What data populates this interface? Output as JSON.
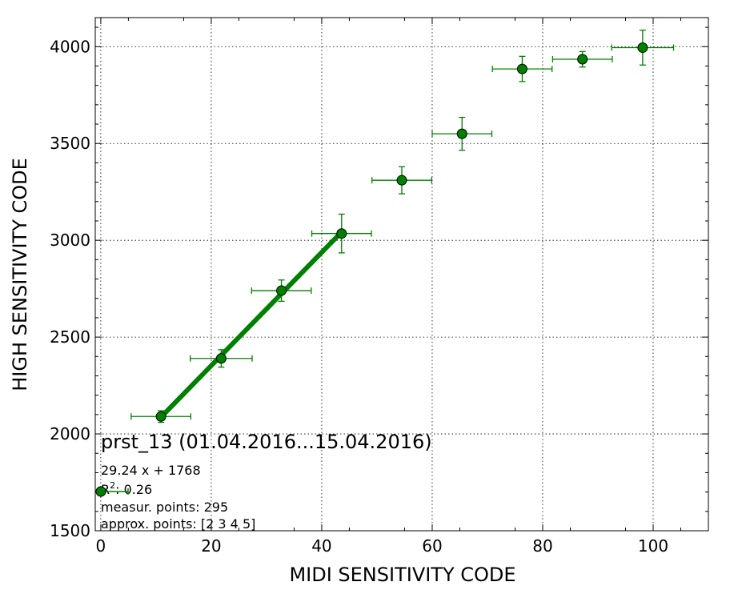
{
  "chart_data": {
    "type": "scatter",
    "title": "prst_13 (01.04.2016...15.04.2016)",
    "xlabel": "MIDI SENSITIVITY CODE",
    "ylabel": "HIGH SENSITIVITY CODE",
    "xlim": [
      -1,
      110
    ],
    "ylim": [
      1500,
      4150
    ],
    "xticks": [
      0,
      20,
      40,
      60,
      80,
      100
    ],
    "yticks": [
      1500,
      2000,
      2500,
      3000,
      3500,
      4000
    ],
    "xtick_labels": [
      "0",
      "20",
      "40",
      "60",
      "80",
      "100"
    ],
    "ytick_labels": [
      "1500",
      "2000",
      "2500",
      "3000",
      "3500",
      "4000"
    ],
    "grid": true,
    "colors": {
      "series": "#008000",
      "marker_edge": "#000000"
    },
    "series": [
      {
        "x": [
          10.9,
          21.8,
          32.7,
          43.6,
          54.5,
          65.4,
          76.3,
          87.2,
          98.1
        ],
        "y": [
          2090,
          2390,
          2740,
          3035,
          3310,
          3550,
          3885,
          3935,
          3995
        ],
        "xerr": [
          5.4,
          5.6,
          5.4,
          5.4,
          5.4,
          5.4,
          5.4,
          5.4,
          5.6
        ],
        "yerr": [
          30,
          45,
          55,
          100,
          70,
          85,
          65,
          40,
          90
        ]
      }
    ],
    "fit_line": {
      "x": [
        10.9,
        43.6
      ],
      "slope": 29.24,
      "intercept": 1768
    },
    "legend": {
      "placement": "bottom-left"
    },
    "annotations": {
      "equation": "29.24 x + 1768",
      "r2_prefix": "R",
      "r2_value": ": 0.26",
      "measur_points": "measur. points: 295",
      "approx_points": "approx. points: [2 3 4 5]"
    }
  }
}
